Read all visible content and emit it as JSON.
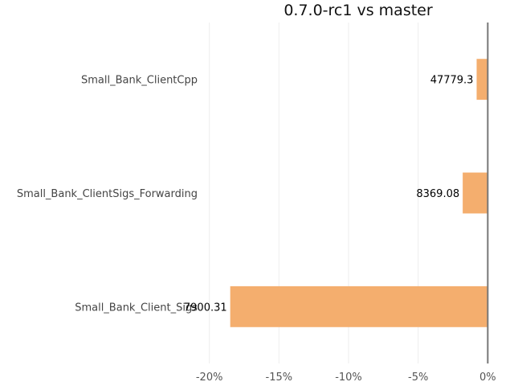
{
  "chart_data": {
    "type": "bar",
    "orientation": "horizontal",
    "title": "0.7.0-rc1 vs master",
    "xlabel": "",
    "ylabel": "",
    "categories": [
      "Small_Bank_ClientCpp",
      "Small_Bank_ClientSigs_Forwarding",
      "Small_Bank_Client_Sigs"
    ],
    "values": [
      -0.8,
      -1.8,
      -18.5
    ],
    "value_labels": [
      "47779.3",
      "8369.08",
      "7900.31"
    ],
    "xlim": [
      -20.5,
      0.5
    ],
    "xticks": [
      -20,
      -15,
      -10,
      -5,
      0
    ],
    "xtick_labels": [
      "-20%",
      "-15%",
      "-10%",
      "-5%",
      "0%"
    ],
    "grid": true,
    "colors": {
      "bar": "#f4ae6e",
      "zero_line": "#777777",
      "grid": "#eeeeee"
    }
  }
}
